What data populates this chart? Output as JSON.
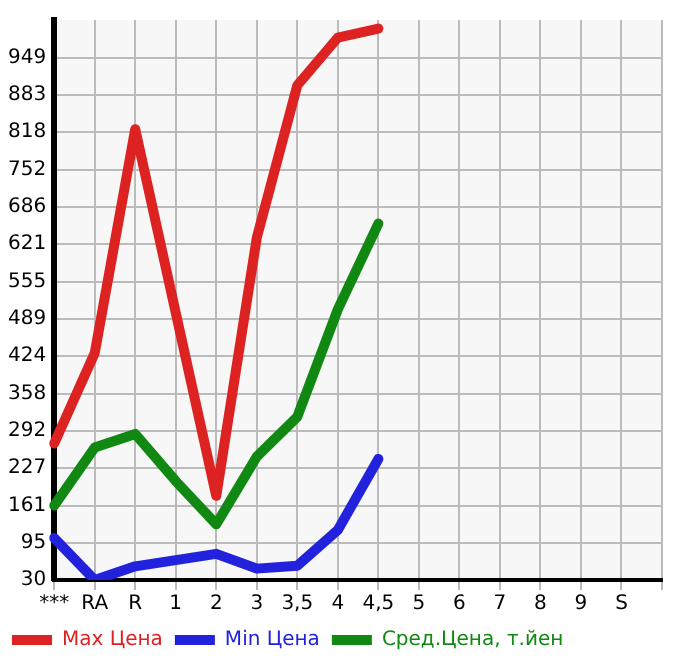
{
  "chart_data": {
    "type": "line",
    "categories": [
      "***",
      "RA",
      "R",
      "1",
      "2",
      "3",
      "3,5",
      "4",
      "4,5",
      "5",
      "6",
      "7",
      "8",
      "9",
      "S",
      null
    ],
    "series": [
      {
        "name": "Max Цена",
        "color": "#dd2222",
        "values": [
          270,
          429,
          823,
          500,
          178,
          632,
          900,
          984,
          1000,
          null,
          null,
          null,
          null,
          null,
          null,
          null
        ]
      },
      {
        "name": "Min Цена",
        "color": "#2222dd",
        "values": [
          104,
          30,
          54,
          65,
          76,
          50,
          55,
          118,
          243,
          null,
          null,
          null,
          null,
          null,
          null,
          null
        ]
      },
      {
        "name": "Сред.Цена, т.йен",
        "color": "#118811",
        "values": [
          161,
          263,
          287,
          204,
          128,
          247,
          317,
          506,
          657,
          null,
          null,
          null,
          null,
          null,
          null,
          null
        ]
      }
    ],
    "ylim": [
      30,
      1015
    ],
    "yticks": [
      30,
      95,
      161,
      227,
      292,
      358,
      424,
      489,
      555,
      621,
      686,
      752,
      818,
      883,
      949
    ],
    "grid": true,
    "legend": "bottom",
    "marker": "none",
    "line_style": "solid"
  }
}
